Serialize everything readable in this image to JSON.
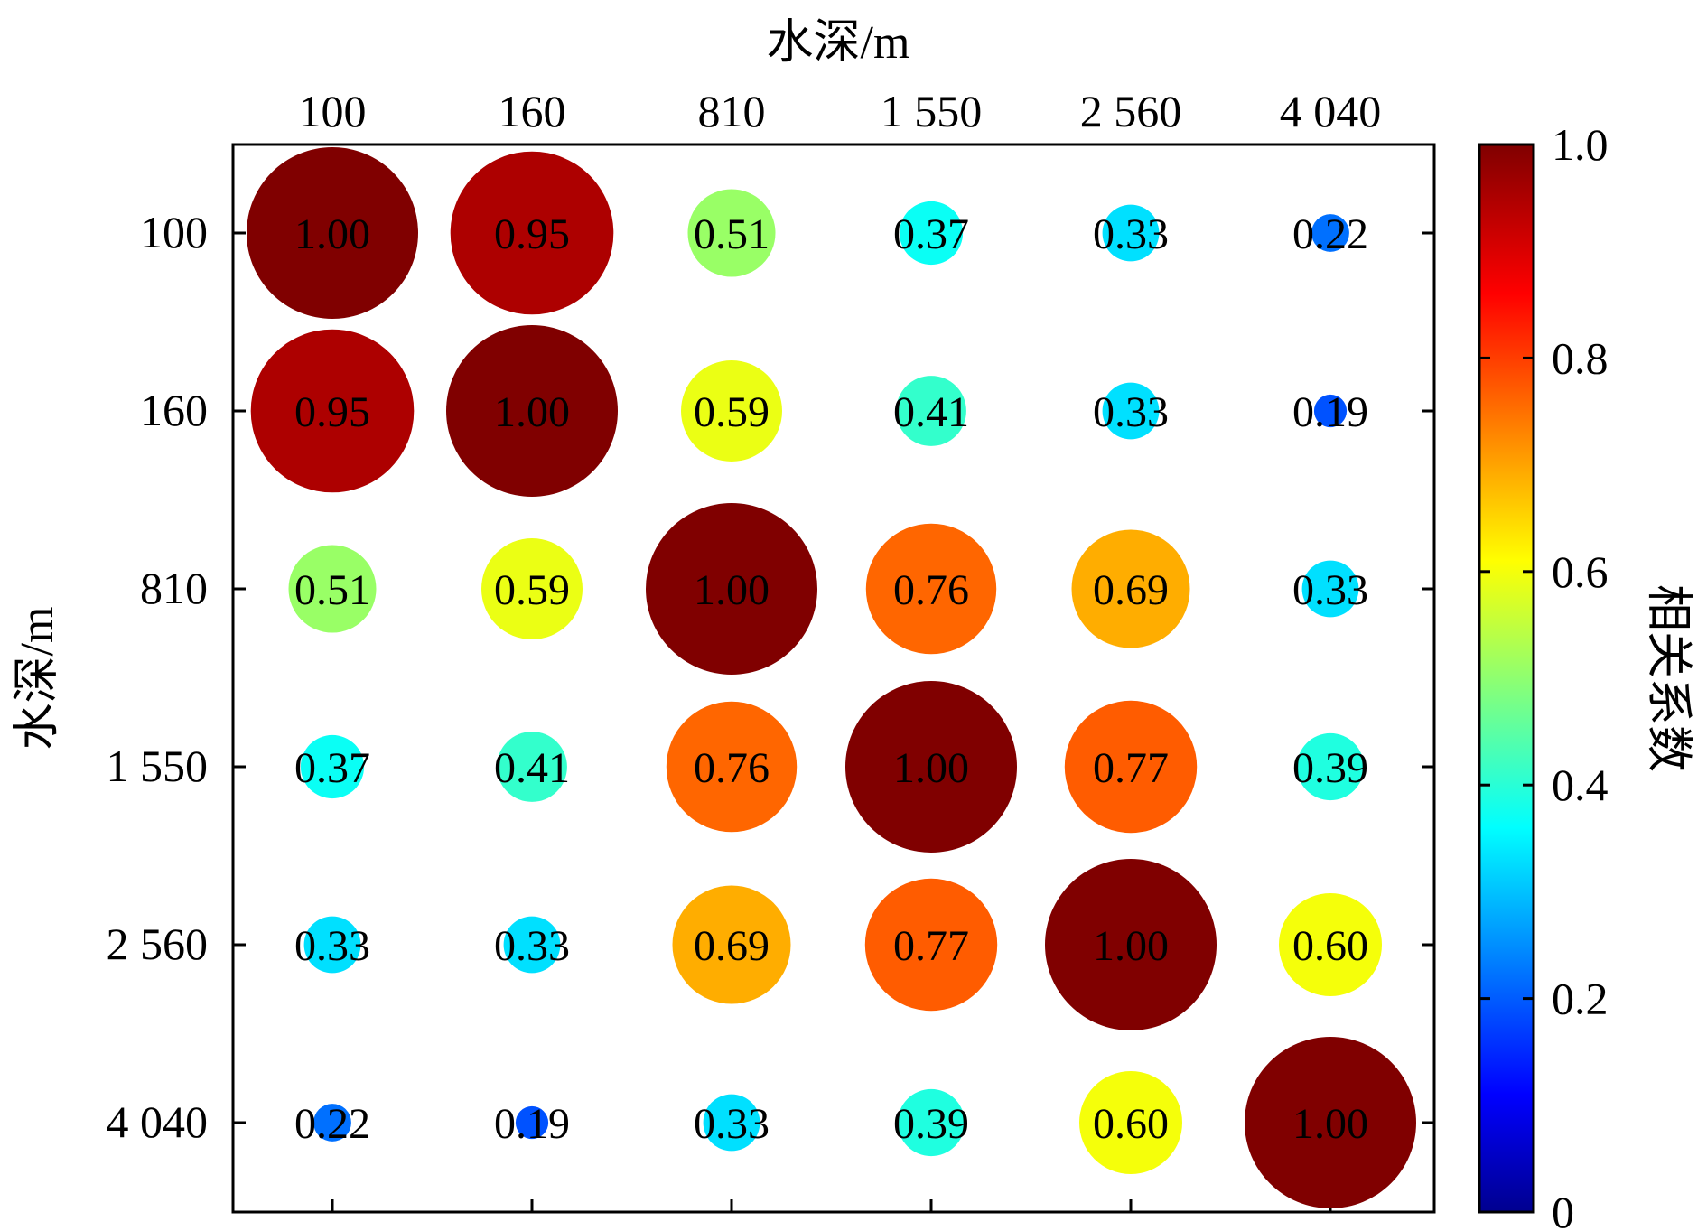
{
  "chart_data": {
    "type": "heatmap",
    "xlabel": "水深/m",
    "ylabel": "水深/m",
    "categories": [
      "100",
      "160",
      "810",
      "1 550",
      "2 560",
      "4 040"
    ],
    "values": [
      [
        1.0,
        0.95,
        0.51,
        0.37,
        0.33,
        0.22
      ],
      [
        0.95,
        1.0,
        0.59,
        0.41,
        0.33,
        0.19
      ],
      [
        0.51,
        0.59,
        1.0,
        0.76,
        0.69,
        0.33
      ],
      [
        0.37,
        0.41,
        0.76,
        1.0,
        0.77,
        0.39
      ],
      [
        0.33,
        0.33,
        0.69,
        0.77,
        1.0,
        0.6
      ],
      [
        0.22,
        0.19,
        0.33,
        0.39,
        0.6,
        1.0
      ]
    ],
    "value_labels": [
      [
        "1.00",
        "0.95",
        "0.51",
        "0.37",
        "0.33",
        "0.22"
      ],
      [
        "0.95",
        "1.00",
        "0.59",
        "0.41",
        "0.33",
        "0.19"
      ],
      [
        "0.51",
        "0.59",
        "1.00",
        "0.76",
        "0.69",
        "0.33"
      ],
      [
        "0.37",
        "0.41",
        "0.76",
        "1.00",
        "0.77",
        "0.39"
      ],
      [
        "0.33",
        "0.33",
        "0.69",
        "0.77",
        "1.00",
        "0.60"
      ],
      [
        "0.22",
        "0.19",
        "0.33",
        "0.39",
        "0.60",
        "1.00"
      ]
    ],
    "colorbar": {
      "label": "相关系数",
      "range": [
        0,
        1.0
      ],
      "ticks": [
        "0",
        "0.2",
        "0.4",
        "0.6",
        "0.8",
        "1.0"
      ],
      "colormap": "jet"
    },
    "x_axis_position": "top",
    "grid": false
  }
}
